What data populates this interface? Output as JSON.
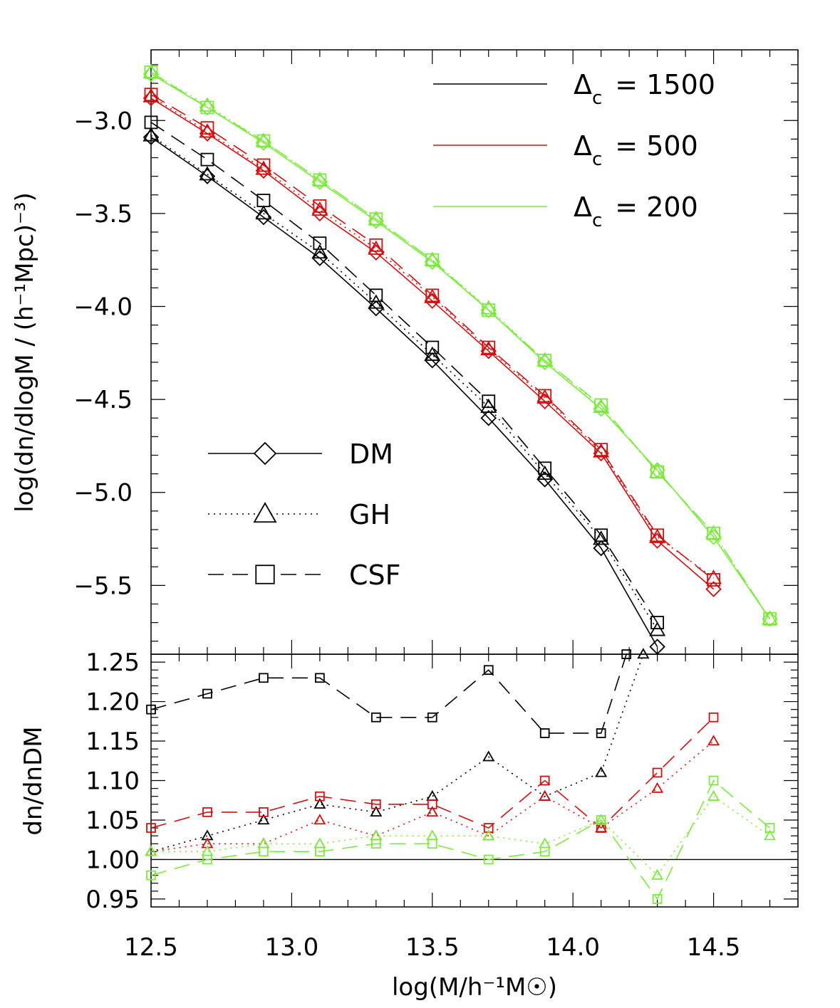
{
  "chart_data": [
    {
      "type": "line",
      "panel": "top",
      "ylabel": "log(dn/dlogM / (h⁻¹Mpc)⁻³)",
      "ylim": [
        -5.87,
        -2.62
      ],
      "yticks": [
        -3.0,
        -3.5,
        -4.0,
        -4.5,
        -5.0,
        -5.5
      ],
      "ytick_labels": [
        "−3.0",
        "−3.5",
        "−4.0",
        "−4.5",
        "−5.0",
        "−5.5"
      ],
      "xlim": [
        12.5,
        14.8
      ],
      "grid": false,
      "color_legend": [
        {
          "label": "Δc = 1500",
          "prefix": "Δ",
          "sub": "c",
          "value": "= 1500",
          "color": "#000000"
        },
        {
          "label": "Δc = 500",
          "prefix": "Δ",
          "sub": "c",
          "value": "= 500",
          "color": "#d01010"
        },
        {
          "label": "Δc = 200",
          "prefix": "Δ",
          "sub": "c",
          "value": "= 200",
          "color": "#7ee840"
        }
      ],
      "style_legend": [
        {
          "label": "DM",
          "marker": "diamond",
          "dash": "solid"
        },
        {
          "label": "GH",
          "marker": "triangle",
          "dash": "dotted"
        },
        {
          "label": "CSF",
          "marker": "square",
          "dash": "dashed"
        }
      ],
      "series": [
        {
          "color": "#000000",
          "kind": "DM",
          "marker": "diamond",
          "dash": "solid",
          "x": [
            12.5,
            12.7,
            12.9,
            13.1,
            13.3,
            13.5,
            13.7,
            13.9,
            14.1,
            14.3
          ],
          "y": [
            -3.09,
            -3.3,
            -3.52,
            -3.74,
            -4.01,
            -4.29,
            -4.6,
            -4.93,
            -5.3,
            -5.83
          ]
        },
        {
          "color": "#000000",
          "kind": "GH",
          "marker": "triangle",
          "dash": "dotted",
          "x": [
            12.5,
            12.7,
            12.9,
            13.1,
            13.3,
            13.5,
            13.7,
            13.9,
            14.1,
            14.3
          ],
          "y": [
            -3.08,
            -3.29,
            -3.5,
            -3.71,
            -3.98,
            -4.26,
            -4.54,
            -4.9,
            -5.25,
            -5.74
          ]
        },
        {
          "color": "#000000",
          "kind": "CSF",
          "marker": "square",
          "dash": "dashed",
          "x": [
            12.5,
            12.7,
            12.9,
            13.1,
            13.3,
            13.5,
            13.7,
            13.9,
            14.1,
            14.3
          ],
          "y": [
            -3.01,
            -3.21,
            -3.43,
            -3.66,
            -3.94,
            -4.22,
            -4.51,
            -4.87,
            -5.23,
            -5.7
          ]
        },
        {
          "color": "#d01010",
          "kind": "DM",
          "marker": "diamond",
          "dash": "solid",
          "x": [
            12.5,
            12.7,
            12.9,
            13.1,
            13.3,
            13.5,
            13.7,
            13.9,
            14.1,
            14.3,
            14.5
          ],
          "y": [
            -2.88,
            -3.07,
            -3.27,
            -3.5,
            -3.71,
            -3.97,
            -4.24,
            -4.51,
            -4.79,
            -5.26,
            -5.52
          ]
        },
        {
          "color": "#d01010",
          "kind": "GH",
          "marker": "triangle",
          "dash": "dotted",
          "x": [
            12.5,
            12.7,
            12.9,
            13.1,
            13.3,
            13.5,
            13.7,
            13.9,
            14.1,
            14.3,
            14.5
          ],
          "y": [
            -2.87,
            -3.06,
            -3.26,
            -3.48,
            -3.69,
            -3.95,
            -4.23,
            -4.49,
            -4.78,
            -5.24,
            -5.46
          ]
        },
        {
          "color": "#d01010",
          "kind": "CSF",
          "marker": "square",
          "dash": "dashed",
          "x": [
            12.5,
            12.7,
            12.9,
            13.1,
            13.3,
            13.5,
            13.7,
            13.9,
            14.1,
            14.3,
            14.5
          ],
          "y": [
            -2.86,
            -3.04,
            -3.24,
            -3.46,
            -3.67,
            -3.94,
            -4.22,
            -4.48,
            -4.77,
            -5.23,
            -5.47
          ]
        },
        {
          "color": "#7ee840",
          "kind": "DM",
          "marker": "diamond",
          "dash": "solid",
          "x": [
            12.5,
            12.7,
            12.9,
            13.1,
            13.3,
            13.5,
            13.7,
            13.9,
            14.1,
            14.3,
            14.5,
            14.7
          ],
          "y": [
            -2.75,
            -2.93,
            -3.12,
            -3.33,
            -3.54,
            -3.76,
            -4.02,
            -4.3,
            -4.55,
            -4.88,
            -5.24,
            -5.68
          ]
        },
        {
          "color": "#7ee840",
          "kind": "GH",
          "marker": "triangle",
          "dash": "dotted",
          "x": [
            12.5,
            12.7,
            12.9,
            13.1,
            13.3,
            13.5,
            13.7,
            13.9,
            14.1,
            14.3,
            14.5,
            14.7
          ],
          "y": [
            -2.74,
            -2.92,
            -3.11,
            -3.32,
            -3.53,
            -3.75,
            -4.01,
            -4.29,
            -4.54,
            -4.89,
            -5.22,
            -5.68
          ]
        },
        {
          "color": "#7ee840",
          "kind": "CSF",
          "marker": "square",
          "dash": "dashed",
          "x": [
            12.5,
            12.7,
            12.9,
            13.1,
            13.3,
            13.5,
            13.7,
            13.9,
            14.1,
            14.3,
            14.5,
            14.7
          ],
          "y": [
            -2.74,
            -2.93,
            -3.11,
            -3.32,
            -3.53,
            -3.75,
            -4.02,
            -4.29,
            -4.53,
            -4.89,
            -5.22,
            -5.68
          ]
        }
      ]
    },
    {
      "type": "line",
      "panel": "bottom",
      "xlabel": "log(M/h⁻¹M☉)",
      "ylabel": "dn/dnDM",
      "xlim": [
        12.5,
        14.8
      ],
      "xticks": [
        12.5,
        13.0,
        13.5,
        14.0,
        14.5
      ],
      "xtick_labels": [
        "12.5",
        "13.0",
        "13.5",
        "14.0",
        "14.5"
      ],
      "ylim": [
        0.94,
        1.26
      ],
      "yticks": [
        0.95,
        1.0,
        1.05,
        1.1,
        1.15,
        1.2,
        1.25
      ],
      "ytick_labels": [
        "0.95",
        "1.00",
        "1.05",
        "1.10",
        "1.15",
        "1.20",
        "1.25"
      ],
      "reference_line": 1.0,
      "grid": false,
      "series": [
        {
          "color": "#000000",
          "kind": "GH",
          "marker": "triangle",
          "dash": "dotted",
          "x": [
            12.5,
            12.7,
            12.9,
            13.1,
            13.3,
            13.5,
            13.7,
            13.9,
            14.1,
            14.25
          ],
          "y": [
            1.01,
            1.03,
            1.05,
            1.07,
            1.06,
            1.08,
            1.13,
            1.08,
            1.11,
            1.26
          ]
        },
        {
          "color": "#000000",
          "kind": "CSF",
          "marker": "square",
          "dash": "dashed",
          "x": [
            12.5,
            12.7,
            12.9,
            13.1,
            13.3,
            13.5,
            13.7,
            13.9,
            14.1,
            14.19
          ],
          "y": [
            1.19,
            1.21,
            1.23,
            1.23,
            1.18,
            1.18,
            1.24,
            1.16,
            1.16,
            1.26
          ]
        },
        {
          "color": "#d01010",
          "kind": "GH",
          "marker": "triangle",
          "dash": "dotted",
          "x": [
            12.5,
            12.7,
            12.9,
            13.1,
            13.3,
            13.5,
            13.7,
            13.9,
            14.1,
            14.3,
            14.5
          ],
          "y": [
            1.01,
            1.02,
            1.02,
            1.05,
            1.03,
            1.06,
            1.03,
            1.08,
            1.04,
            1.09,
            1.15
          ]
        },
        {
          "color": "#d01010",
          "kind": "CSF",
          "marker": "square",
          "dash": "dashed",
          "x": [
            12.5,
            12.7,
            12.9,
            13.1,
            13.3,
            13.5,
            13.7,
            13.9,
            14.1,
            14.3,
            14.5
          ],
          "y": [
            1.04,
            1.06,
            1.06,
            1.08,
            1.07,
            1.07,
            1.04,
            1.1,
            1.04,
            1.11,
            1.18
          ]
        },
        {
          "color": "#7ee840",
          "kind": "GH",
          "marker": "triangle",
          "dash": "dotted",
          "x": [
            12.5,
            12.7,
            12.9,
            13.1,
            13.3,
            13.5,
            13.7,
            13.9,
            14.1,
            14.3,
            14.5,
            14.7
          ],
          "y": [
            1.01,
            1.01,
            1.02,
            1.02,
            1.03,
            1.03,
            1.03,
            1.02,
            1.05,
            0.98,
            1.08,
            1.03
          ]
        },
        {
          "color": "#7ee840",
          "kind": "CSF",
          "marker": "square",
          "dash": "dashed",
          "x": [
            12.5,
            12.7,
            12.9,
            13.1,
            13.3,
            13.5,
            13.7,
            13.9,
            14.1,
            14.3,
            14.5,
            14.7
          ],
          "y": [
            0.98,
            1.0,
            1.01,
            1.01,
            1.02,
            1.02,
            1.0,
            1.01,
            1.05,
            0.95,
            1.1,
            1.04
          ]
        }
      ]
    }
  ]
}
